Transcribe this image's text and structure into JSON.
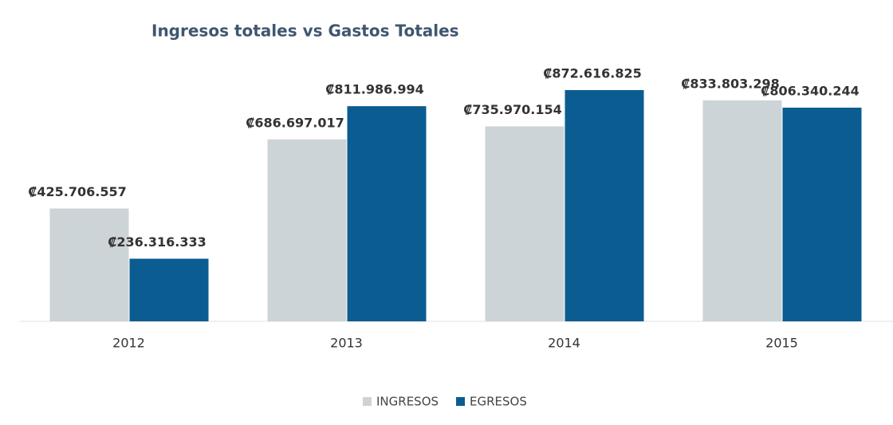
{
  "chart_data": {
    "type": "bar",
    "title": "Ingresos totales vs Gastos Totales",
    "categories": [
      "2012",
      "2013",
      "2014",
      "2015"
    ],
    "series": [
      {
        "name": "INGRESOS",
        "color": "#cdd4d7",
        "values": [
          425706557,
          686697017,
          735970154,
          833803298
        ],
        "value_labels": [
          "₡425.706.557",
          "₡686.697.017",
          "₡735.970.154",
          "₡833.803.298"
        ]
      },
      {
        "name": "EGRESOS",
        "color": "#0b5c91",
        "values": [
          236316333,
          811986994,
          872616825,
          806340244
        ],
        "value_labels": [
          "₡236.316.333",
          "₡811.986.994",
          "₡872.616.825",
          "₡806.340.244"
        ]
      }
    ]
  }
}
